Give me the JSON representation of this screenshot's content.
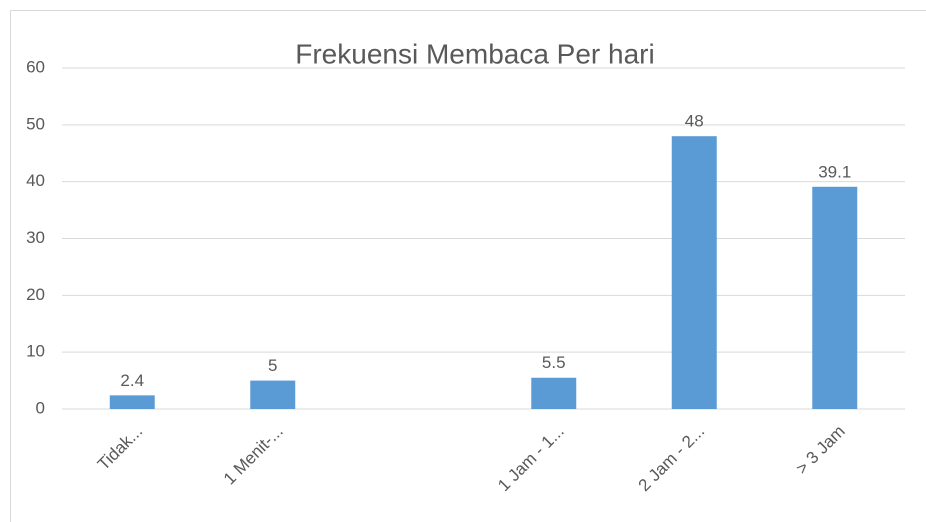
{
  "chart_data": {
    "type": "bar",
    "title": "Frekuensi Membaca Per hari",
    "categories": [
      "Tidak...",
      "1 Menit-...",
      null,
      "1 Jam - 1...",
      "2 Jam - 2...",
      "> 3 Jam"
    ],
    "values": [
      2.4,
      5,
      null,
      5.5,
      48,
      39.1
    ],
    "color": "#5b9bd5",
    "ylim": [
      0,
      60
    ],
    "yticks": [
      0,
      10,
      20,
      30,
      40,
      50,
      60
    ],
    "grid": true
  }
}
